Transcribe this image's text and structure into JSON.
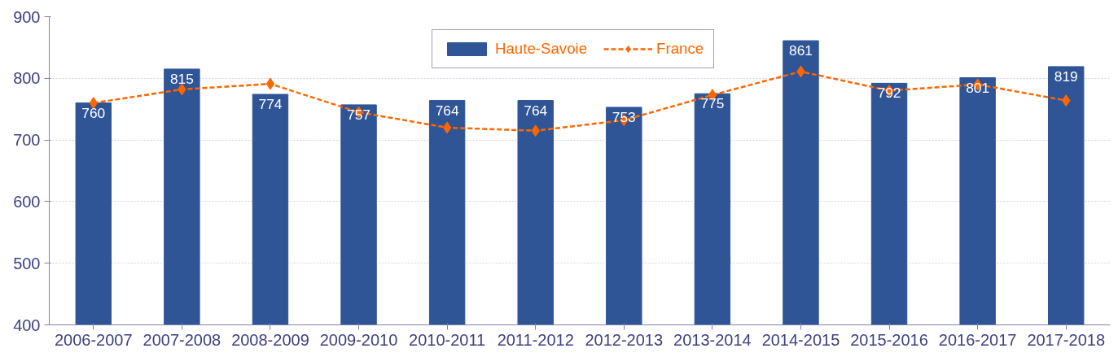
{
  "chart_data": {
    "type": "bar",
    "categories": [
      "2006-2007",
      "2007-2008",
      "2008-2009",
      "2009-2010",
      "2010-2011",
      "2011-2012",
      "2012-2013",
      "2013-2014",
      "2014-2015",
      "2015-2016",
      "2016-2017",
      "2017-2018"
    ],
    "series": [
      {
        "name": "Haute-Savoie",
        "color": "#2f5597",
        "values": [
          760,
          815,
          774,
          757,
          764,
          764,
          753,
          775,
          861,
          792,
          801,
          819
        ],
        "value_labels": [
          "760",
          "815",
          "774",
          "757",
          "764",
          "764",
          "753",
          "775",
          "861",
          "792",
          "801",
          "819"
        ]
      },
      {
        "name": "France",
        "type": "line",
        "color": "#ff6600",
        "marker": "diamond",
        "line_style": "dashed",
        "values": [
          760,
          782,
          791,
          745,
          720,
          715,
          732,
          773,
          811,
          780,
          790,
          764
        ]
      }
    ],
    "ylim": [
      400,
      900
    ],
    "yticks": [
      400,
      500,
      600,
      700,
      800,
      900
    ],
    "grid": "y",
    "legend": "top"
  }
}
